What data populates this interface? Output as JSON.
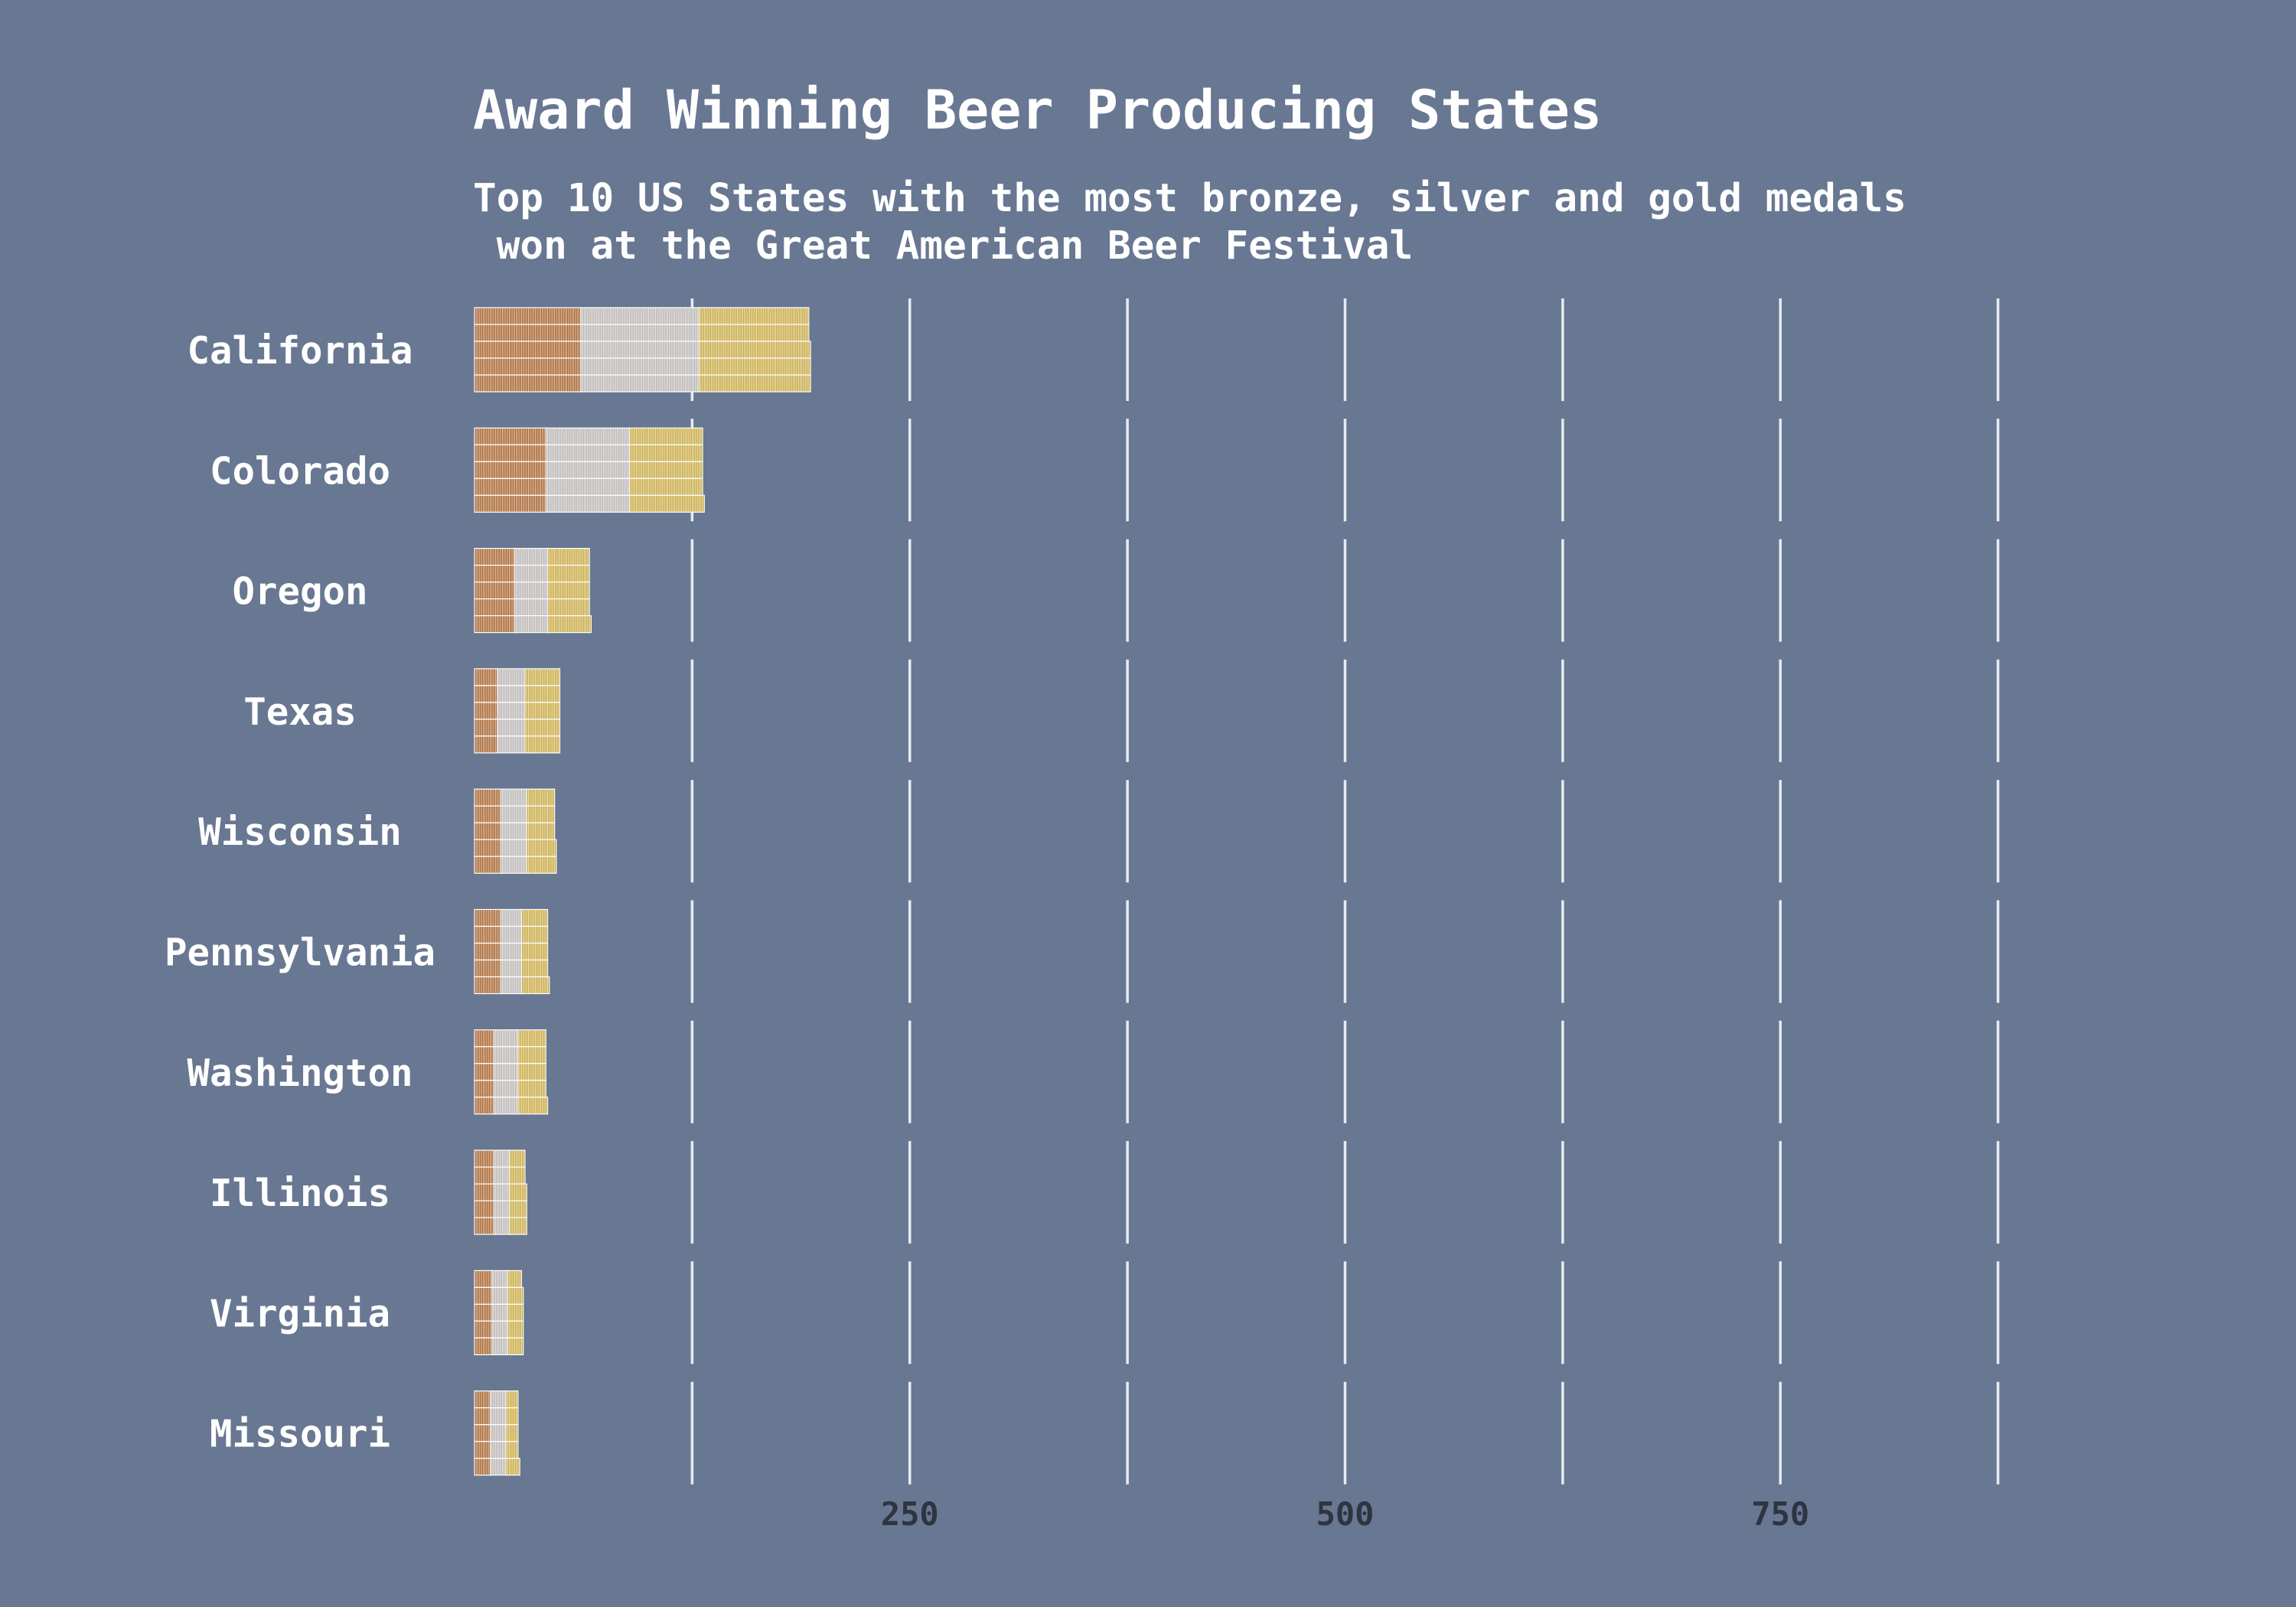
{
  "chart_data": {
    "type": "bar",
    "title": "Award Winning Beer Producing States",
    "subtitle_lines": [
      "Top 10 US States with the most bronze, silver and gold medals",
      " won at the Great American Beer Festival"
    ],
    "categories": [
      "California",
      "Colorado",
      "Oregon",
      "Texas",
      "Wisconsin",
      "Pennsylvania",
      "Washington",
      "Illinois",
      "Virginia",
      "Missouri"
    ],
    "series": [
      {
        "key": "bronze",
        "values": [
          309,
          209,
          118,
          69,
          78,
          78,
          57,
          58,
          53,
          48
        ],
        "color": "#a0561c"
      },
      {
        "key": "silver",
        "values": [
          341,
          241,
          96,
          82,
          76,
          64,
          71,
          47,
          45,
          46
        ],
        "color": "#b4b0ae"
      },
      {
        "key": "gold",
        "values": [
          318,
          211,
          121,
          100,
          82,
          76,
          81,
          48,
          44,
          36
        ],
        "color": "#c4a334"
      }
    ],
    "stacked": true,
    "orientation": "horizontal",
    "waffle_cell_value": 1,
    "xlim": [
      0,
      1000
    ],
    "xticks": [
      250,
      500,
      750
    ],
    "grid": true,
    "legend": "none"
  }
}
